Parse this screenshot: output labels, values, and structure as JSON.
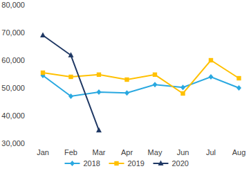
{
  "chart_data": {
    "type": "line",
    "categories": [
      "Jan",
      "Feb",
      "Mar",
      "Apr",
      "May",
      "Jun",
      "Jul",
      "Aug"
    ],
    "series": [
      {
        "name": "2018",
        "color": "#29a8e0",
        "marker": "diamond",
        "values": [
          54500,
          47000,
          48500,
          48200,
          51200,
          50200,
          54000,
          50000
        ]
      },
      {
        "name": "2019",
        "color": "#ffc000",
        "marker": "square",
        "values": [
          55500,
          54000,
          54800,
          53000,
          54800,
          48000,
          60000,
          53500
        ]
      },
      {
        "name": "2020",
        "color": "#1f3864",
        "marker": "triangle",
        "values": [
          69000,
          61800,
          34700,
          null,
          null,
          null,
          null,
          null
        ]
      }
    ],
    "ylim": [
      30000,
      80000
    ],
    "yticks": [
      {
        "value": 30000,
        "label": "30,000"
      },
      {
        "value": 40000,
        "label": "40,000"
      },
      {
        "value": 50000,
        "label": "50,000"
      },
      {
        "value": 60000,
        "label": "60,000"
      },
      {
        "value": 70000,
        "label": "70,000"
      },
      {
        "value": 80000,
        "label": "80,000"
      }
    ],
    "grid": false,
    "legend": "bottom"
  }
}
